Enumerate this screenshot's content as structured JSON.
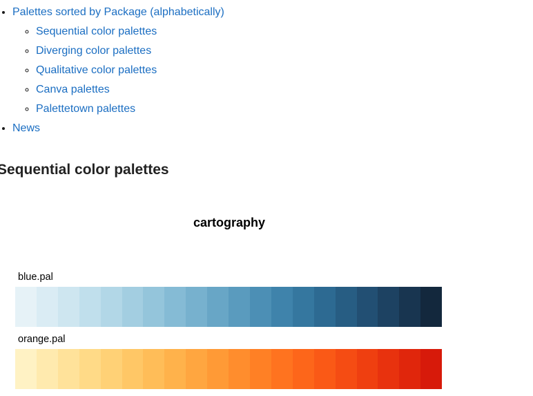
{
  "nav": {
    "top": {
      "label": "Palettes sorted by Package (alphabetically)",
      "children": [
        {
          "label": "Sequential color palettes"
        },
        {
          "label": "Diverging color palettes"
        },
        {
          "label": "Qualitative color palettes"
        },
        {
          "label": "Canva palettes"
        },
        {
          "label": "Palettetown palettes"
        }
      ]
    },
    "news": {
      "label": "News"
    }
  },
  "section_heading": "Sequential color palettes",
  "chart": {
    "title": "cartography",
    "title_fontsize": 18,
    "label_fontsize": 14.5,
    "swatch_row_height": 58,
    "swatch_row_width": 618,
    "background_color": "#ffffff",
    "palettes": [
      {
        "name": "blue.pal",
        "colors": [
          "#e6f2f7",
          "#daecf4",
          "#cee6f0",
          "#c0dfec",
          "#b2d7e7",
          "#a3cee1",
          "#94c5db",
          "#85bbd5",
          "#77b1ce",
          "#68a6c6",
          "#5a9bbe",
          "#4c8fb5",
          "#3f83ab",
          "#35779f",
          "#2d6a92",
          "#275d83",
          "#224f73",
          "#1d4262",
          "#183550",
          "#13283d"
        ]
      },
      {
        "name": "orange.pal",
        "colors": [
          "#fff2c4",
          "#ffeaae",
          "#ffe29a",
          "#ffda87",
          "#ffd176",
          "#ffc766",
          "#ffbd58",
          "#ffb24b",
          "#ffa640",
          "#ff9a36",
          "#ff8d2d",
          "#ff8025",
          "#ff731f",
          "#fd661a",
          "#fa5916",
          "#f54c13",
          "#ef3f10",
          "#e8320e",
          "#e0260c",
          "#d71a0a"
        ]
      }
    ]
  }
}
